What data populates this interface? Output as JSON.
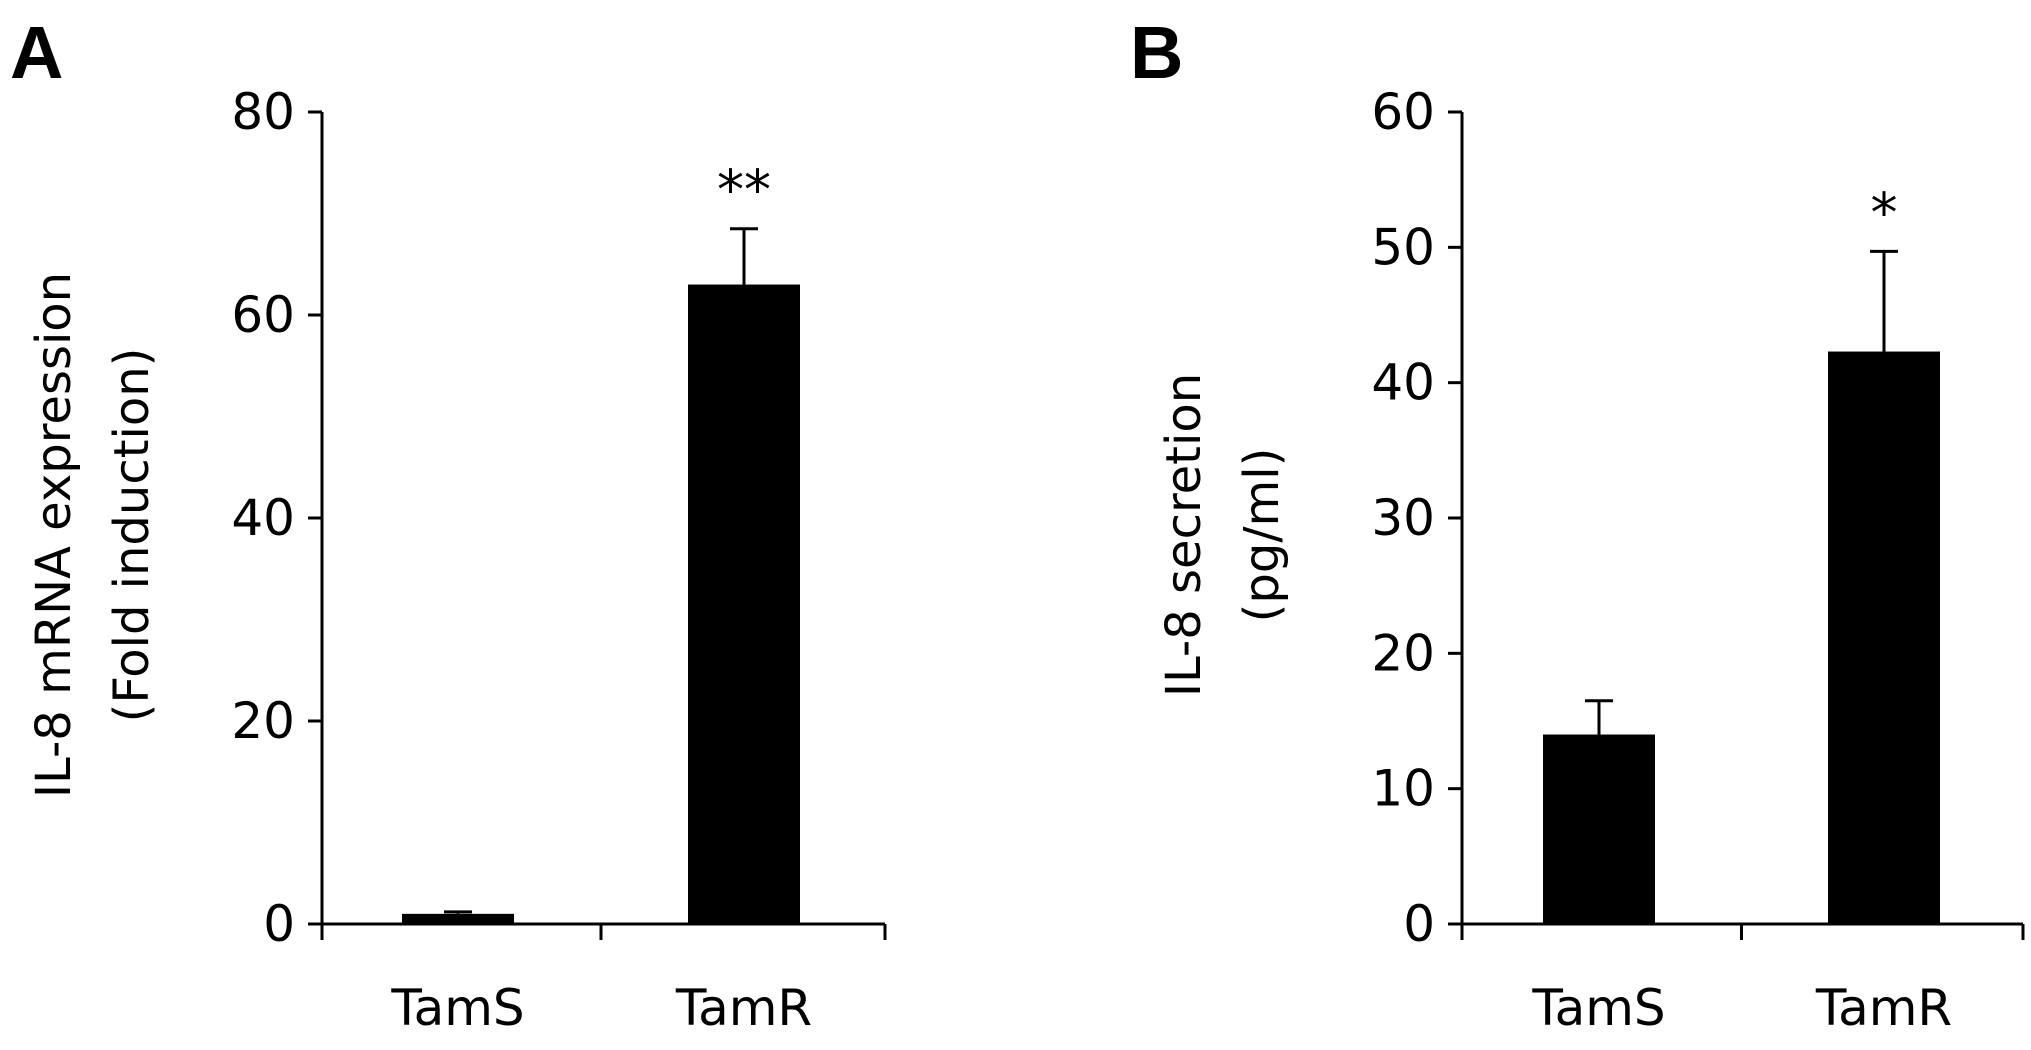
{
  "chart_data": [
    {
      "type": "bar",
      "panel": "A",
      "ylabel_line1": "IL-8 mRNA expression",
      "ylabel_line2": "(Fold induction)",
      "xlabel": "",
      "ylim": [
        0,
        80
      ],
      "yticks": [
        "0",
        "20",
        "40",
        "60",
        "80"
      ],
      "categories": [
        "TamS",
        "TamR"
      ],
      "values": [
        1,
        63
      ],
      "errors": [
        0.2,
        5.5
      ],
      "significance": [
        "",
        "**"
      ],
      "bar_color": "#000000"
    },
    {
      "type": "bar",
      "panel": "B",
      "ylabel_line1": "IL-8 secretion",
      "ylabel_line2": "(pg/ml)",
      "xlabel": "",
      "ylim": [
        0,
        60
      ],
      "yticks": [
        "0",
        "10",
        "20",
        "30",
        "40",
        "50",
        "60"
      ],
      "categories": [
        "TamS",
        "TamR"
      ],
      "values": [
        14,
        42.3
      ],
      "errors": [
        2.5,
        7.4
      ],
      "significance": [
        "",
        "*"
      ],
      "bar_color": "#000000"
    }
  ]
}
